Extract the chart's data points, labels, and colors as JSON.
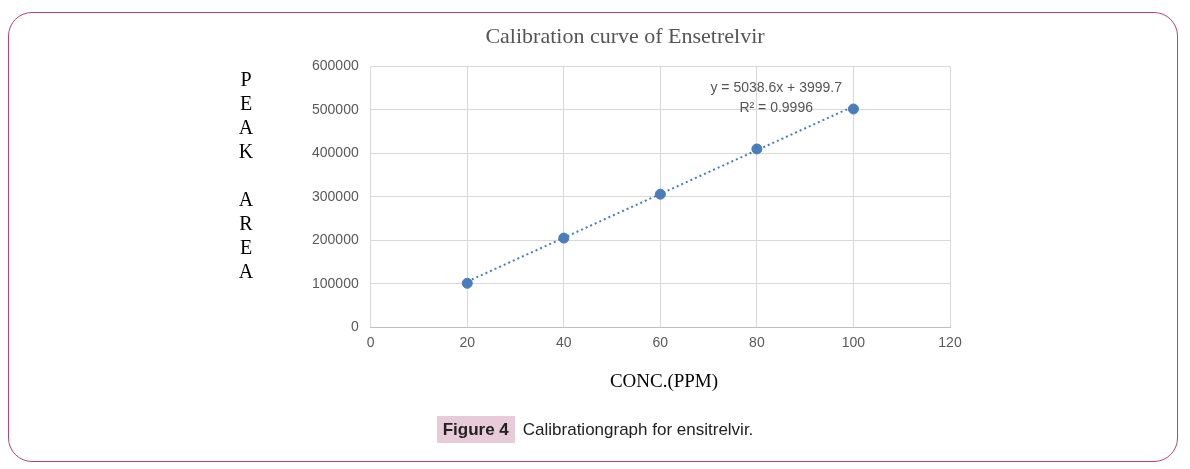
{
  "chart_data": {
    "type": "scatter",
    "title": "Calibration curve of Ensetrelvir",
    "xlabel": "CONC.(PPM)",
    "ylabel": "PEAK AREA",
    "series": [
      {
        "color": "#4a7ebb",
        "x": [
          20,
          40,
          60,
          80,
          100
        ],
        "values": [
          101000,
          205000,
          306000,
          410000,
          502000
        ]
      },
      {
        "type": "line",
        "color": "#4a7ebb",
        "x": [
          20,
          100
        ],
        "values": [
          105000,
          508000
        ],
        "line_style": "dotted",
        "marker": "none"
      }
    ],
    "xlim": [
      0,
      120
    ],
    "xticks": [
      0,
      20,
      40,
      60,
      80,
      100,
      120
    ],
    "ylim": [
      0,
      600000
    ],
    "yticks": [
      0,
      100000,
      200000,
      300000,
      400000,
      500000,
      600000
    ],
    "grid": true,
    "legend": false,
    "marker": "circle",
    "annotations": [
      "y = 5038.6x + 3999.7",
      "R² = 0.9996",
      "Figure 4",
      "Calibrationgraph for ensitrelvir."
    ]
  }
}
